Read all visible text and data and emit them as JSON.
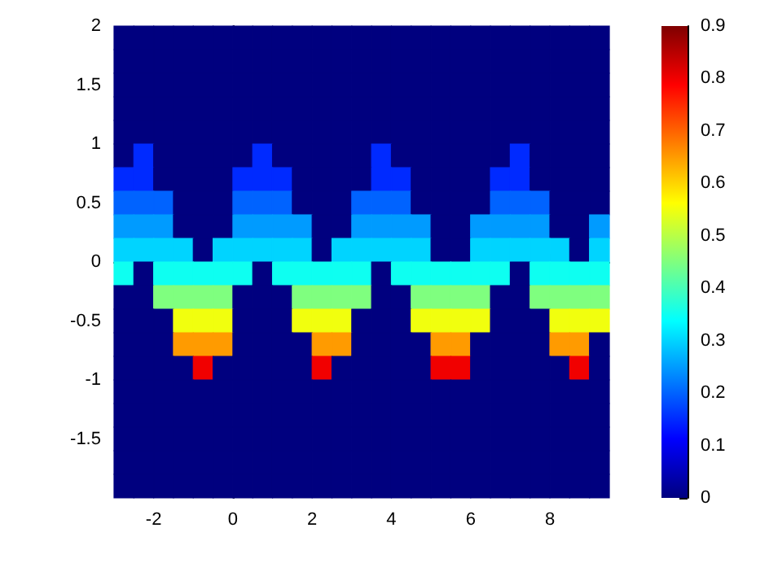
{
  "chart_data": {
    "type": "heatmap",
    "xlim": [
      -3,
      9.5
    ],
    "ylim": [
      -2,
      2
    ],
    "xticks": [
      -2,
      0,
      2,
      4,
      6,
      8
    ],
    "yticks": [
      -1.5,
      -1,
      -0.5,
      0,
      0.5,
      1,
      1.5,
      2
    ],
    "clim": [
      0,
      0.9
    ],
    "cticks": [
      0,
      0.1,
      0.2,
      0.3,
      0.4,
      0.5,
      0.6,
      0.7,
      0.8,
      0.9
    ],
    "cells": [
      [
        0,
        0,
        0,
        0,
        0,
        0,
        0,
        0,
        0,
        0,
        0,
        0,
        0,
        0,
        0,
        0,
        0,
        0,
        0,
        0,
        0,
        0,
        0,
        0,
        0
      ],
      [
        0,
        0,
        0,
        0,
        0,
        0,
        0,
        0,
        0,
        0,
        0,
        0,
        0,
        0,
        0,
        0,
        0,
        0,
        0,
        0,
        0,
        0,
        0,
        0,
        0
      ],
      [
        0,
        0,
        0,
        0,
        0,
        0,
        0,
        0,
        0,
        0,
        0,
        0,
        0,
        0,
        0,
        0,
        0,
        0,
        0,
        0,
        0,
        0,
        0,
        0,
        0
      ],
      [
        0,
        0,
        0,
        0,
        0,
        0,
        0,
        0,
        0,
        0,
        0,
        0,
        0,
        0,
        0,
        0,
        0,
        0,
        0,
        0,
        0,
        0,
        0,
        0,
        0
      ],
      [
        0,
        0,
        0,
        0,
        0,
        0,
        0,
        0,
        0,
        0,
        0,
        0,
        0,
        0,
        0,
        0,
        0,
        0,
        0,
        0,
        0,
        0,
        0,
        0,
        0
      ],
      [
        0,
        0.15,
        0,
        0,
        0,
        0,
        0,
        0.15,
        0,
        0,
        0,
        0,
        0,
        0.15,
        0,
        0,
        0,
        0,
        0,
        0,
        0.15,
        0,
        0,
        0,
        0
      ],
      [
        0.15,
        0.15,
        0,
        0,
        0,
        0,
        0.15,
        0.15,
        0.15,
        0,
        0,
        0,
        0,
        0.15,
        0.15,
        0,
        0,
        0,
        0,
        0.15,
        0.15,
        0,
        0,
        0,
        0
      ],
      [
        0.2,
        0.2,
        0.2,
        0,
        0,
        0,
        0.2,
        0.2,
        0.2,
        0,
        0,
        0,
        0.2,
        0.2,
        0.2,
        0,
        0,
        0,
        0,
        0.2,
        0.2,
        0.2,
        0,
        0,
        0
      ],
      [
        0.25,
        0.25,
        0.25,
        0,
        0,
        0,
        0.25,
        0.25,
        0.25,
        0.25,
        0,
        0,
        0.25,
        0.25,
        0.25,
        0.25,
        0,
        0,
        0.25,
        0.25,
        0.25,
        0.25,
        0,
        0,
        0.25
      ],
      [
        0.3,
        0.3,
        0.3,
        0.3,
        0,
        0.3,
        0.3,
        0.3,
        0.3,
        0.3,
        0,
        0.3,
        0.3,
        0.3,
        0.3,
        0.3,
        0,
        0,
        0.3,
        0.3,
        0.3,
        0.3,
        0.3,
        0,
        0.3
      ],
      [
        0.35,
        0,
        0.35,
        0.35,
        0.35,
        0.35,
        0.35,
        0,
        0.35,
        0.35,
        0.35,
        0.35,
        0.35,
        0,
        0.35,
        0.35,
        0.35,
        0.35,
        0.35,
        0.35,
        0,
        0.35,
        0.35,
        0.35,
        0.35
      ],
      [
        0,
        0,
        0.45,
        0.45,
        0.45,
        0.45,
        0,
        0,
        0,
        0.45,
        0.45,
        0.45,
        0.45,
        0,
        0,
        0.45,
        0.45,
        0.45,
        0.45,
        0,
        0,
        0.45,
        0.45,
        0.45,
        0.45
      ],
      [
        0,
        0,
        0,
        0.55,
        0.55,
        0.55,
        0,
        0,
        0,
        0.55,
        0.55,
        0.55,
        0,
        0,
        0,
        0.55,
        0.55,
        0.55,
        0.55,
        0,
        0,
        0,
        0.55,
        0.55,
        0.55
      ],
      [
        0,
        0,
        0,
        0.65,
        0.65,
        0.65,
        0,
        0,
        0,
        0,
        0.65,
        0.65,
        0,
        0,
        0,
        0,
        0.65,
        0.65,
        0,
        0,
        0,
        0,
        0.65,
        0.65,
        0
      ],
      [
        0,
        0,
        0,
        0,
        0.8,
        0,
        0,
        0,
        0,
        0,
        0.8,
        0,
        0,
        0,
        0,
        0,
        0.8,
        0.8,
        0,
        0,
        0,
        0,
        0,
        0.8,
        0
      ],
      [
        0,
        0,
        0,
        0,
        0,
        0,
        0,
        0,
        0,
        0,
        0,
        0,
        0,
        0,
        0,
        0,
        0,
        0,
        0,
        0,
        0,
        0,
        0,
        0,
        0
      ],
      [
        0,
        0,
        0,
        0,
        0,
        0,
        0,
        0,
        0,
        0,
        0,
        0,
        0,
        0,
        0,
        0,
        0,
        0,
        0,
        0,
        0,
        0,
        0,
        0,
        0
      ],
      [
        0,
        0,
        0,
        0,
        0,
        0,
        0,
        0,
        0,
        0,
        0,
        0,
        0,
        0,
        0,
        0,
        0,
        0,
        0,
        0,
        0,
        0,
        0,
        0,
        0
      ],
      [
        0,
        0,
        0,
        0,
        0,
        0,
        0,
        0,
        0,
        0,
        0,
        0,
        0,
        0,
        0,
        0,
        0,
        0,
        0,
        0,
        0,
        0,
        0,
        0,
        0
      ],
      [
        0,
        0,
        0,
        0,
        0,
        0,
        0,
        0,
        0,
        0,
        0,
        0,
        0,
        0,
        0,
        0,
        0,
        0,
        0,
        0,
        0,
        0,
        0,
        0,
        0
      ]
    ]
  }
}
